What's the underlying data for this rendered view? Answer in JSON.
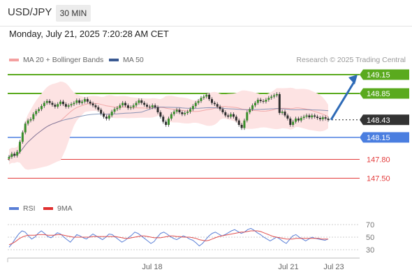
{
  "header": {
    "symbol": "USD/JPY",
    "timeframe": "30 MIN",
    "datetime": "Monday, July 21, 2025 7:20:28 AM CET"
  },
  "legend": {
    "bollinger": "MA 20 + Bollinger Bands",
    "ma50": "MA 50",
    "research": "Research © 2025 Trading Central"
  },
  "rsi_legend": {
    "rsi": "RSI",
    "ma9": "9MA"
  },
  "colors": {
    "resistance": "#5aaa1e",
    "support": "#4a7ee0",
    "target_red": "#e33b3b",
    "candle": "#3a8f2c",
    "arrow": "#2f6bb7",
    "bollinger": "#f08080",
    "ma50": "#3a5a92",
    "rsi": "#5a7fd6",
    "rsi_ma": "#e05050"
  },
  "chart_data": [
    {
      "type": "candlestick",
      "title": "USD/JPY",
      "interval": "30 MIN",
      "x_ticks": [
        "Jul 18",
        "Jul 21",
        "Jul 23"
      ],
      "levels": [
        {
          "label": "149.15",
          "value": 149.15,
          "kind": "resistance"
        },
        {
          "label": "148.85",
          "value": 148.85,
          "kind": "resistance"
        },
        {
          "label": "148.43",
          "value": 148.43,
          "kind": "last_price"
        },
        {
          "label": "148.15",
          "value": 148.15,
          "kind": "pivot"
        },
        {
          "label": "147.80",
          "value": 147.8,
          "kind": "support"
        },
        {
          "label": "147.50",
          "value": 147.5,
          "kind": "support"
        }
      ],
      "close_series": [
        147.84,
        147.89,
        147.86,
        147.92,
        148.08,
        148.23,
        148.37,
        148.42,
        148.44,
        148.52,
        148.57,
        148.6,
        148.65,
        148.7,
        148.73,
        148.7,
        148.67,
        148.64,
        148.68,
        148.72,
        148.68,
        148.64,
        148.66,
        148.68,
        148.7,
        148.74,
        148.7,
        148.72,
        148.76,
        148.72,
        148.69,
        148.66,
        148.63,
        148.59,
        148.53,
        148.48,
        148.45,
        148.5,
        148.56,
        148.6,
        148.62,
        148.66,
        148.7,
        148.66,
        148.62,
        148.63,
        148.66,
        148.7,
        148.74,
        148.7,
        148.67,
        148.64,
        148.63,
        148.66,
        148.63,
        148.55,
        148.48,
        148.4,
        148.35,
        148.45,
        148.52,
        148.56,
        148.59,
        148.55,
        148.52,
        148.54,
        148.56,
        148.6,
        148.65,
        148.7,
        148.73,
        148.78,
        148.8,
        148.83,
        148.76,
        148.7,
        148.68,
        148.64,
        148.6,
        148.55,
        148.5,
        148.48,
        148.52,
        148.48,
        148.42,
        148.35,
        148.3,
        148.42,
        148.55,
        148.6,
        148.66,
        148.7,
        148.75,
        148.73,
        148.72,
        148.75,
        148.78,
        148.8,
        148.82,
        148.84,
        148.54,
        148.56,
        148.5,
        148.45,
        148.35,
        148.4,
        148.45,
        148.42,
        148.46,
        148.48,
        148.5,
        148.47,
        148.5,
        148.48,
        148.46,
        148.44,
        148.47,
        148.45,
        148.43
      ],
      "forecast_arrow": {
        "from": 148.43,
        "to": 149.15
      },
      "legend": [
        "MA 20 + Bollinger Bands",
        "MA 50"
      ]
    },
    {
      "type": "line",
      "title": "RSI",
      "y_ticks": [
        70,
        50,
        30
      ],
      "series": [
        {
          "name": "RSI",
          "values": [
            34,
            40,
            48,
            55,
            60,
            58,
            52,
            47,
            50,
            56,
            60,
            56,
            51,
            49,
            53,
            57,
            55,
            50,
            46,
            42,
            48,
            54,
            52,
            49,
            47,
            51,
            55,
            52,
            49,
            46,
            50,
            55,
            54,
            50,
            46,
            42,
            45,
            49,
            53,
            58,
            56,
            52,
            48,
            44,
            40,
            43,
            50,
            56,
            58,
            55,
            51,
            48,
            46,
            49,
            52,
            50,
            47,
            45,
            41,
            36,
            40,
            46,
            52,
            56,
            58,
            55,
            52,
            54,
            57,
            60,
            62,
            59,
            56,
            58,
            62,
            64,
            61,
            57,
            54,
            50,
            47,
            44,
            47,
            50,
            47,
            43,
            40,
            46,
            52,
            54,
            50,
            47,
            44,
            47,
            50,
            48,
            47,
            46,
            45,
            47
          ]
        },
        {
          "name": "9MA",
          "values": [
            38,
            40,
            43,
            47,
            50,
            52,
            53,
            53,
            53,
            54,
            54,
            54,
            53,
            53,
            53,
            54,
            54,
            53,
            52,
            51,
            50,
            50,
            50,
            50,
            50,
            50,
            51,
            51,
            51,
            51,
            51,
            51,
            51,
            51,
            50,
            49,
            48,
            48,
            49,
            50,
            51,
            52,
            52,
            51,
            50,
            49,
            49,
            49,
            50,
            51,
            52,
            52,
            51,
            51,
            50,
            50,
            50,
            49,
            48,
            46,
            45,
            44,
            45,
            47,
            49,
            51,
            52,
            53,
            54,
            55,
            56,
            57,
            58,
            58,
            59,
            60,
            60,
            60,
            59,
            57,
            55,
            53,
            51,
            50,
            49,
            48,
            47,
            47,
            47,
            48,
            48,
            48,
            48,
            48,
            48,
            48,
            48,
            47,
            47,
            47
          ]
        }
      ]
    }
  ]
}
